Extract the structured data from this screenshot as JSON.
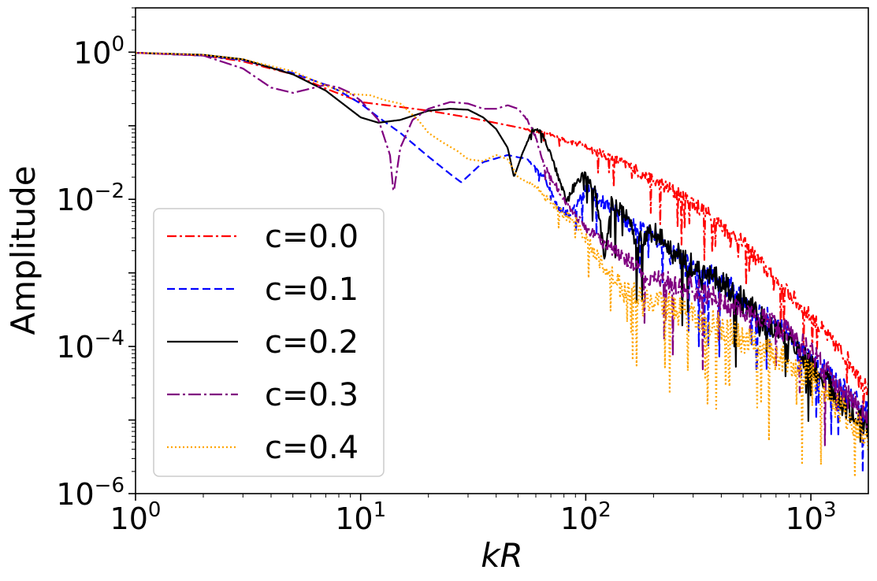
{
  "chart_data": {
    "type": "line",
    "title": "",
    "xlabel": "kR",
    "ylabel": "Amplitude",
    "xscale": "log",
    "yscale": "log",
    "xlim": [
      1,
      1800
    ],
    "ylim": [
      1e-06,
      4
    ],
    "x_ticks": [
      {
        "value": 1,
        "base": "10",
        "exp": "0"
      },
      {
        "value": 10,
        "base": "10",
        "exp": "1"
      },
      {
        "value": 100,
        "base": "10",
        "exp": "2"
      },
      {
        "value": 1000,
        "base": "10",
        "exp": "3"
      }
    ],
    "y_ticks": [
      {
        "value": 1,
        "base": "10",
        "exp": "0"
      },
      {
        "value": 0.01,
        "base": "10",
        "exp": "−2"
      },
      {
        "value": 0.0001,
        "base": "10",
        "exp": "−4"
      },
      {
        "value": 1e-06,
        "base": "10",
        "exp": "−6"
      }
    ],
    "legend_position": "lower-left",
    "series": [
      {
        "name": "c=0.0",
        "color": "#ff0000",
        "dash": "dashdot",
        "x": [
          1,
          2,
          3,
          5,
          7,
          10,
          15,
          20,
          30,
          50,
          70,
          100,
          150,
          200,
          300,
          500,
          700,
          1000,
          1500,
          1800
        ],
        "y": [
          0.98,
          0.9,
          0.75,
          0.5,
          0.32,
          0.21,
          0.18,
          0.16,
          0.13,
          0.095,
          0.075,
          0.052,
          0.03,
          0.018,
          0.009,
          0.0025,
          0.0008,
          0.00025,
          6e-05,
          2.5e-05
        ],
        "noise": 0.32
      },
      {
        "name": "c=0.1",
        "color": "#0000ff",
        "dash": "dashed",
        "x": [
          1,
          2,
          3,
          5,
          7,
          8,
          10,
          12,
          15,
          20,
          25,
          28,
          35,
          45,
          55,
          65,
          75,
          85,
          100,
          120,
          150,
          200,
          250,
          300,
          400,
          500,
          700,
          1000,
          1300,
          1800
        ],
        "y": [
          0.98,
          0.9,
          0.78,
          0.52,
          0.36,
          0.3,
          0.2,
          0.13,
          0.08,
          0.038,
          0.022,
          0.017,
          0.032,
          0.04,
          0.035,
          0.02,
          0.008,
          0.006,
          0.014,
          0.009,
          0.005,
          0.003,
          0.0015,
          0.0011,
          0.0008,
          0.0004,
          0.0002,
          7e-05,
          3e-05,
          1.2e-05
        ],
        "noise": 0.5
      },
      {
        "name": "c=0.2",
        "color": "#000000",
        "dash": "solid",
        "x": [
          1,
          2,
          3,
          5,
          7,
          10,
          12,
          15,
          20,
          25,
          30,
          35,
          40,
          45,
          48,
          52,
          58,
          63,
          70,
          78,
          82,
          88,
          95,
          100,
          110,
          122,
          130,
          150,
          170,
          200,
          250,
          300,
          400,
          500,
          700,
          1000,
          1300,
          1800
        ],
        "y": [
          0.98,
          0.92,
          0.8,
          0.5,
          0.3,
          0.13,
          0.11,
          0.12,
          0.16,
          0.17,
          0.165,
          0.13,
          0.09,
          0.05,
          0.02,
          0.04,
          0.09,
          0.085,
          0.04,
          0.015,
          0.009,
          0.014,
          0.02,
          0.022,
          0.013,
          0.0015,
          0.009,
          0.006,
          0.0025,
          0.0035,
          0.0018,
          0.0012,
          0.0007,
          0.0004,
          0.00015,
          6e-05,
          2e-05,
          8e-06
        ],
        "noise": 0.55
      },
      {
        "name": "c=0.3",
        "color": "#800080",
        "dash": "longdash",
        "x": [
          1,
          2,
          3,
          4,
          5,
          6,
          7,
          8,
          9,
          10,
          12,
          13.5,
          14,
          15,
          17,
          20,
          25,
          30,
          35,
          40,
          45,
          50,
          55,
          60,
          65,
          70,
          80,
          90,
          100,
          120,
          150,
          200,
          300,
          400,
          500,
          700,
          1000,
          1300,
          1800
        ],
        "y": [
          0.98,
          0.9,
          0.6,
          0.33,
          0.28,
          0.32,
          0.36,
          0.33,
          0.28,
          0.22,
          0.12,
          0.04,
          0.012,
          0.05,
          0.12,
          0.17,
          0.21,
          0.2,
          0.17,
          0.17,
          0.19,
          0.17,
          0.12,
          0.07,
          0.03,
          0.02,
          0.01,
          0.006,
          0.004,
          0.0025,
          0.0015,
          0.0008,
          0.0006,
          0.0004,
          0.0003,
          0.0002,
          8e-05,
          3e-05,
          1e-05
        ],
        "noise": 0.5
      },
      {
        "name": "c=0.4",
        "color": "#ffa500",
        "dash": "dotted",
        "x": [
          1,
          2,
          3,
          5,
          7,
          9,
          11,
          13,
          15,
          18,
          20,
          23,
          27,
          30,
          35,
          40,
          45,
          50,
          60,
          70,
          80,
          90,
          100,
          120,
          150,
          200,
          300,
          400,
          500,
          700,
          1000,
          1300,
          1800
        ],
        "y": [
          0.98,
          0.92,
          0.8,
          0.55,
          0.35,
          0.27,
          0.26,
          0.22,
          0.2,
          0.12,
          0.08,
          0.06,
          0.045,
          0.035,
          0.033,
          0.04,
          0.035,
          0.02,
          0.015,
          0.009,
          0.006,
          0.005,
          0.003,
          0.0012,
          0.0006,
          0.0004,
          0.00025,
          0.00018,
          0.00012,
          7e-05,
          4e-05,
          1.5e-05,
          6e-06
        ],
        "noise": 0.6
      }
    ]
  }
}
